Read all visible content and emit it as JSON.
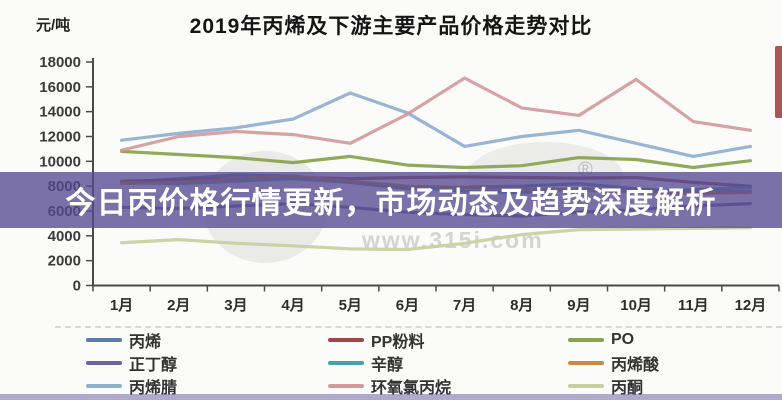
{
  "banner": {
    "text": "今日丙价格行情更新，市场动态及趋势深度解析",
    "bg_color": "#564a92",
    "text_color": "#ffffff"
  },
  "watermark": {
    "reg_mark": "®",
    "url_text": "www.315i.com"
  },
  "right_edge_marker_color": "#9e3f41",
  "chart_data": {
    "type": "line",
    "title": "2019年丙烯及下游主要产品价格走势对比",
    "ylabel": "元/吨",
    "xlabel": "",
    "ylim": [
      0,
      18000
    ],
    "y_tick_step": 2000,
    "y_ticks": [
      0,
      2000,
      4000,
      6000,
      8000,
      10000,
      12000,
      14000,
      16000,
      18000
    ],
    "grid": false,
    "legend_position": "bottom",
    "categories": [
      "1月",
      "2月",
      "3月",
      "4月",
      "5月",
      "6月",
      "7月",
      "8月",
      "9月",
      "10月",
      "11月",
      "12月"
    ],
    "series": [
      {
        "key": "propylene",
        "name": "丙烯",
        "color": "#5b7fa8",
        "values": [
          8300,
          8600,
          8900,
          8800,
          8300,
          7800,
          7900,
          8000,
          8200,
          7800,
          7500,
          7600
        ]
      },
      {
        "key": "pp-powder",
        "name": "PP粉料",
        "color": "#a04548",
        "values": [
          8400,
          8500,
          8600,
          8700,
          8600,
          8700,
          8750,
          8700,
          8650,
          8700,
          8300,
          8000
        ]
      },
      {
        "key": "po",
        "name": "PO",
        "color": "#8aa24c",
        "values": [
          10800,
          10550,
          10300,
          9900,
          10400,
          9700,
          9500,
          9650,
          10300,
          10150,
          9500,
          10050
        ]
      },
      {
        "key": "n-butanol",
        "name": "正丁醇",
        "color": "#6f639c",
        "values": [
          6300,
          6200,
          6400,
          6600,
          6300,
          5900,
          5700,
          5600,
          5900,
          6100,
          6400,
          6600
        ]
      },
      {
        "key": "octanol",
        "name": "辛醇",
        "color": "#46a0a8",
        "values": [
          8300,
          8200,
          8400,
          8600,
          8300,
          7900,
          7600,
          7500,
          7800,
          7600,
          7700,
          7900
        ]
      },
      {
        "key": "acrylic-acid",
        "name": "丙烯酸",
        "color": "#cd8a44",
        "values": [
          8200,
          8300,
          8600,
          8800,
          8400,
          8000,
          7900,
          7800,
          7700,
          7500,
          7400,
          7500
        ]
      },
      {
        "key": "acrylonitrile",
        "name": "丙烯腈",
        "color": "#8fafd0",
        "values": [
          11700,
          12250,
          12700,
          13400,
          15500,
          13900,
          11200,
          12000,
          12500,
          11450,
          10400,
          11200
        ]
      },
      {
        "key": "epichlorohydrin",
        "name": "环氧氯丙烷",
        "color": "#d39a9b",
        "values": [
          10900,
          12000,
          12400,
          12150,
          11450,
          13800,
          16700,
          14300,
          13700,
          16600,
          13200,
          12500
        ]
      },
      {
        "key": "acetone",
        "name": "丙酮",
        "color": "#c5d09e",
        "values": [
          3450,
          3700,
          3400,
          3200,
          2950,
          2900,
          3400,
          4100,
          4500,
          4550,
          4600,
          4650
        ]
      }
    ]
  }
}
